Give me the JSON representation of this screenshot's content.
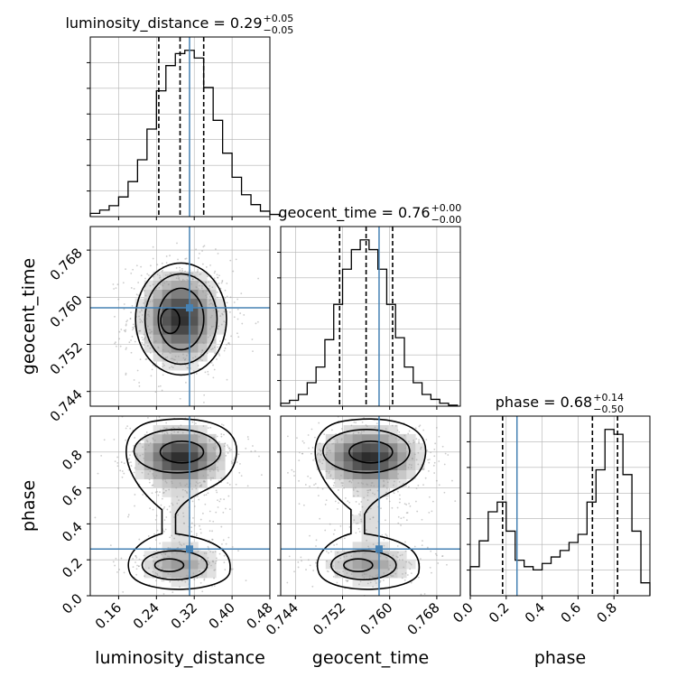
{
  "chart_data": {
    "type": "corner",
    "parameters": [
      "luminosity_distance",
      "geocent_time",
      "phase"
    ],
    "truths": [
      0.31,
      0.7582,
      0.26
    ],
    "titles": [
      {
        "param": "luminosity_distance",
        "median": "0.29",
        "plus": "+0.05",
        "minus": "−0.05"
      },
      {
        "param": "geocent_time",
        "median": "0.76",
        "plus": "+0.00",
        "minus": "−0.00"
      },
      {
        "param": "phase",
        "median": "0.68",
        "plus": "+0.14",
        "minus": "−0.50"
      }
    ],
    "axes": {
      "luminosity_distance": {
        "lim": [
          0.1,
          0.48
        ],
        "ticks": [
          0.16,
          0.24,
          0.32,
          0.4,
          0.48
        ],
        "tick_labels": [
          "0.16",
          "0.24",
          "0.32",
          "0.40",
          "0.48"
        ]
      },
      "geocent_time": {
        "lim": [
          0.7415,
          0.772
        ],
        "ticks": [
          0.744,
          0.752,
          0.76,
          0.768
        ],
        "tick_labels": [
          "0.744",
          "0.752",
          "0.760",
          "0.768"
        ]
      },
      "phase": {
        "lim": [
          0.0,
          1.0
        ],
        "ticks": [
          0.0,
          0.2,
          0.4,
          0.6,
          0.8
        ],
        "tick_labels": [
          "0.0",
          "0.2",
          "0.4",
          "0.6",
          "0.8"
        ]
      }
    },
    "quantiles": {
      "luminosity_distance": [
        0.245,
        0.29,
        0.34
      ],
      "geocent_time": [
        0.7515,
        0.756,
        0.7605
      ],
      "phase": [
        0.18,
        0.68,
        0.82
      ]
    },
    "histograms": {
      "luminosity_distance": {
        "x": [
          0.1,
          0.12,
          0.14,
          0.16,
          0.18,
          0.2,
          0.22,
          0.24,
          0.26,
          0.28,
          0.3,
          0.32,
          0.34,
          0.36,
          0.38,
          0.4,
          0.42,
          0.44,
          0.46,
          0.48
        ],
        "counts": [
          3,
          6,
          10,
          18,
          32,
          52,
          80,
          115,
          138,
          149,
          152,
          145,
          118,
          88,
          58,
          36,
          20,
          11,
          5,
          2
        ]
      },
      "geocent_time": {
        "x": [
          0.7415,
          0.743,
          0.7445,
          0.746,
          0.7475,
          0.749,
          0.7505,
          0.752,
          0.7535,
          0.755,
          0.7565,
          0.758,
          0.7595,
          0.761,
          0.7625,
          0.764,
          0.7655,
          0.767,
          0.7685,
          0.77
        ],
        "counts": [
          3,
          6,
          12,
          24,
          40,
          68,
          104,
          140,
          160,
          170,
          160,
          140,
          104,
          70,
          40,
          24,
          12,
          7,
          3,
          1
        ]
      },
      "phase": {
        "x": [
          0.0,
          0.05,
          0.1,
          0.15,
          0.2,
          0.25,
          0.3,
          0.35,
          0.4,
          0.45,
          0.5,
          0.55,
          0.6,
          0.65,
          0.7,
          0.75,
          0.8,
          0.85,
          0.9,
          0.95
        ],
        "counts": [
          18,
          34,
          52,
          58,
          40,
          22,
          18,
          16,
          20,
          24,
          28,
          33,
          38,
          58,
          78,
          103,
          100,
          75,
          40,
          8
        ]
      }
    },
    "grid": true
  }
}
